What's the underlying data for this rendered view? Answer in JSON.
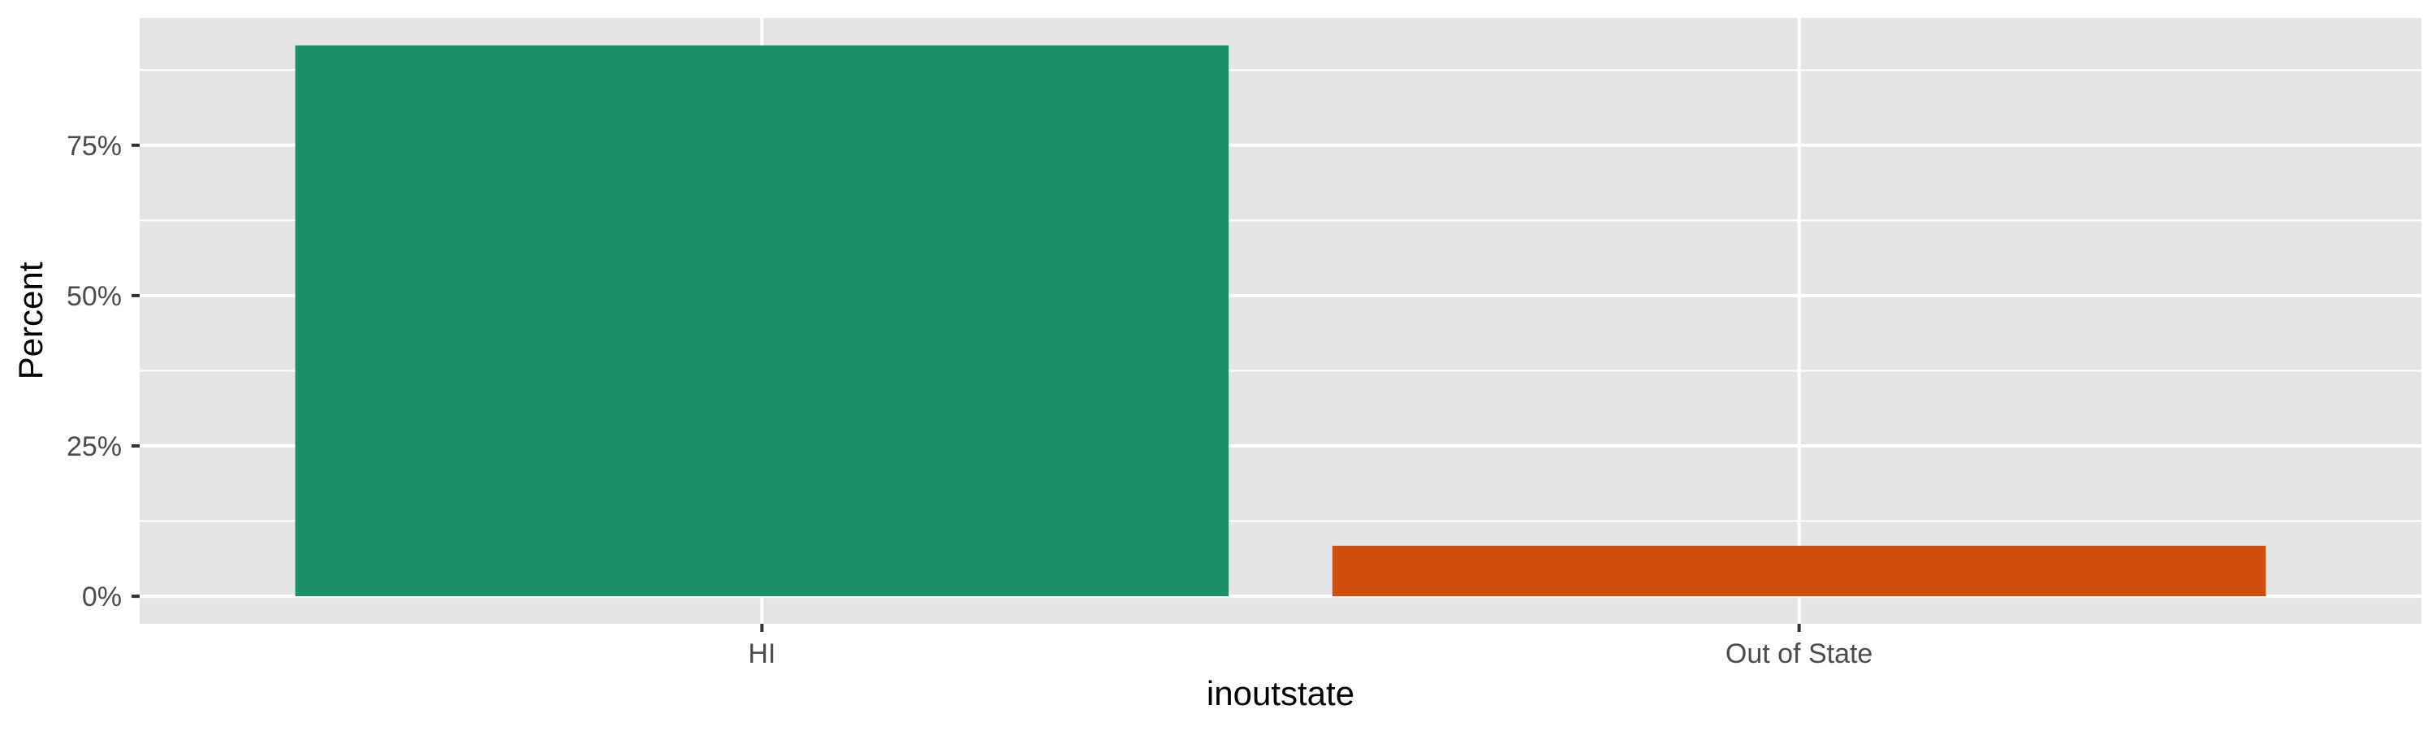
{
  "chart_data": {
    "type": "bar",
    "title": "",
    "xlabel": "inoutstate",
    "ylabel": "Percent",
    "categories": [
      "HI",
      "Out of State"
    ],
    "values": [
      91.6,
      8.4
    ],
    "colors": [
      "#1b9066",
      "#d14d0b"
    ],
    "ylim": [
      -4.58,
      96.18
    ],
    "yticks": [
      0,
      25,
      50,
      75
    ],
    "ytick_labels": [
      "0%",
      "25%",
      "50%",
      "75%"
    ],
    "yminor": [
      12.5,
      37.5,
      62.5,
      87.5
    ],
    "grid": true,
    "legend": "none",
    "panel_color": "#e5e5e5",
    "grid_color": "#ffffff"
  }
}
